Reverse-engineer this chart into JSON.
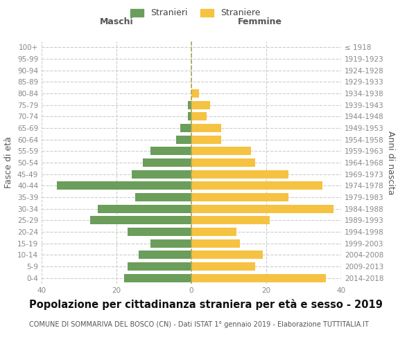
{
  "age_groups": [
    "0-4",
    "5-9",
    "10-14",
    "15-19",
    "20-24",
    "25-29",
    "30-34",
    "35-39",
    "40-44",
    "45-49",
    "50-54",
    "55-59",
    "60-64",
    "65-69",
    "70-74",
    "75-79",
    "80-84",
    "85-89",
    "90-94",
    "95-99",
    "100+"
  ],
  "birth_years": [
    "2014-2018",
    "2009-2013",
    "2004-2008",
    "1999-2003",
    "1994-1998",
    "1989-1993",
    "1984-1988",
    "1979-1983",
    "1974-1978",
    "1969-1973",
    "1964-1968",
    "1959-1963",
    "1954-1958",
    "1949-1953",
    "1944-1948",
    "1939-1943",
    "1934-1938",
    "1929-1933",
    "1924-1928",
    "1919-1923",
    "≤ 1918"
  ],
  "males": [
    18,
    17,
    14,
    11,
    17,
    27,
    25,
    15,
    36,
    16,
    13,
    11,
    4,
    3,
    1,
    1,
    0,
    0,
    0,
    0,
    0
  ],
  "females": [
    36,
    17,
    19,
    13,
    12,
    21,
    38,
    26,
    35,
    26,
    17,
    16,
    8,
    8,
    4,
    5,
    2,
    0,
    0,
    0,
    0
  ],
  "male_color": "#6a9e5a",
  "female_color": "#f5c242",
  "background_color": "#ffffff",
  "grid_color": "#cccccc",
  "title": "Popolazione per cittadinanza straniera per età e sesso - 2019",
  "subtitle": "COMUNE DI SOMMARIVA DEL BOSCO (CN) - Dati ISTAT 1° gennaio 2019 - Elaborazione TUTTITALIA.IT",
  "legend_stranieri": "Stranieri",
  "legend_straniere": "Straniere",
  "xlabel_left": "Maschi",
  "xlabel_right": "Femmine",
  "ylabel_left": "Fasce di età",
  "ylabel_right": "Anni di nascita",
  "xlim": 40,
  "title_fontsize": 10.5,
  "subtitle_fontsize": 7,
  "tick_fontsize": 7.5,
  "label_fontsize": 9
}
